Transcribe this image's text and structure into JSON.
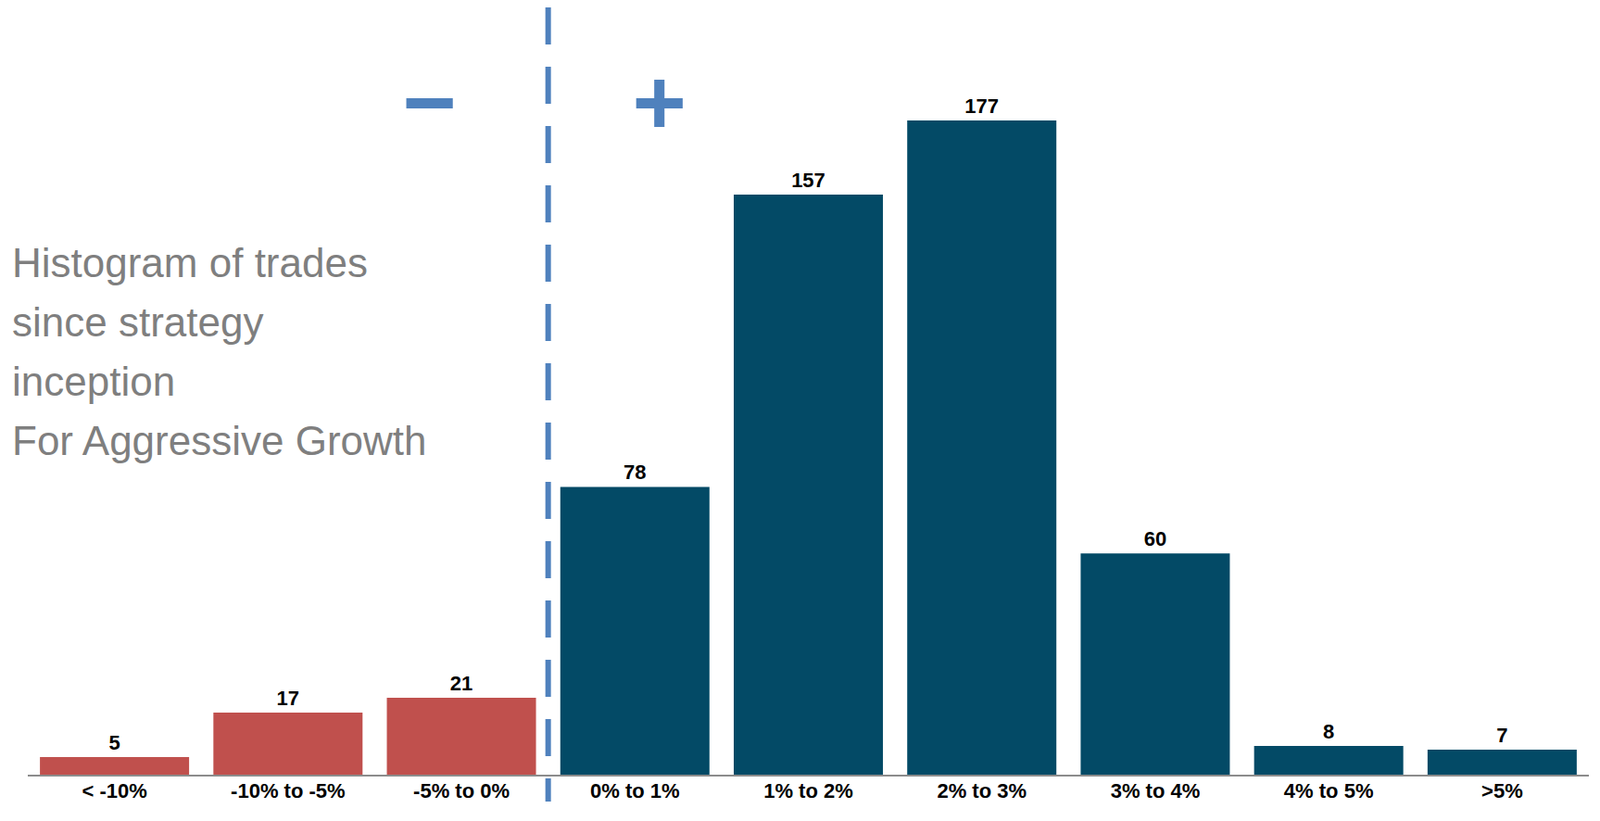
{
  "chart_data": {
    "type": "bar",
    "title": "Histogram of trades\nsince strategy\ninception\nFor Aggressive Growth",
    "categories": [
      "< -10%",
      "-10% to -5%",
      "-5% to 0%",
      "0% to 1%",
      "1% to 2%",
      "2% to 3%",
      "3% to 4%",
      "4% to 5%",
      ">5%"
    ],
    "values": [
      5,
      17,
      21,
      78,
      157,
      177,
      60,
      8,
      7
    ],
    "colors": [
      "#c0504d",
      "#c0504d",
      "#c0504d",
      "#034a66",
      "#034a66",
      "#034a66",
      "#034a66",
      "#034a66",
      "#034a66"
    ],
    "annotations": [
      "−",
      "+"
    ],
    "data_labels": true,
    "tick_labels": "x",
    "grid": false
  }
}
